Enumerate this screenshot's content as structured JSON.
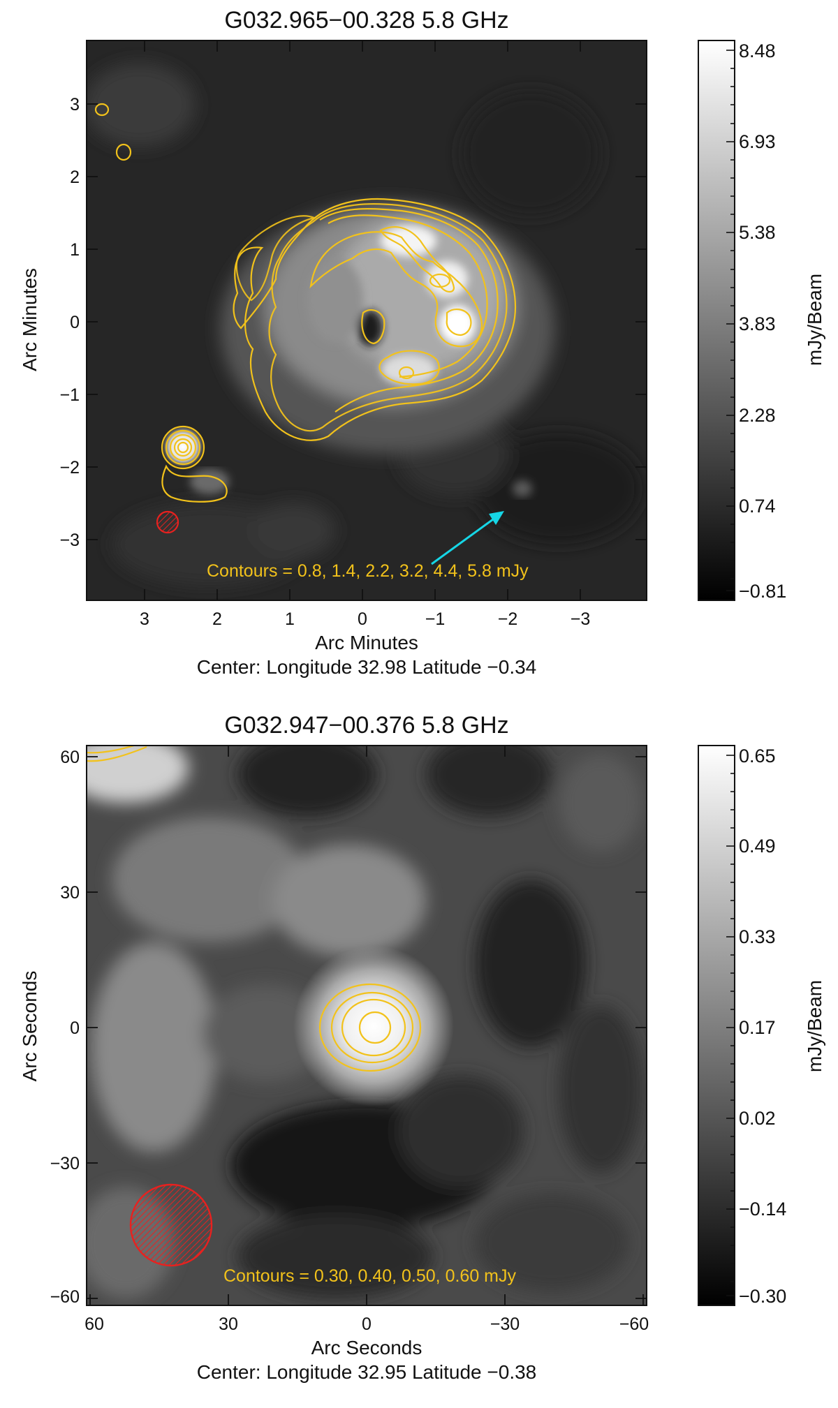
{
  "colors": {
    "contour": "#f2c21b",
    "beam": "#e8211f",
    "arrow": "#16d6e6",
    "frame": "#111111"
  },
  "panels": [
    {
      "title": "G032.965−00.328  5.8 GHz",
      "x_label": "Arc Minutes",
      "y_label": "Arc Minutes",
      "center_caption": "Center:  Longitude 32.98 Latitude −0.34",
      "contours_note": "Contours = 0.8, 1.4, 2.2, 3.2, 4.4, 5.8 mJy",
      "x_ticks": [
        "3",
        "2",
        "1",
        "0",
        "−1",
        "−2",
        "−3"
      ],
      "y_ticks": [
        "3",
        "2",
        "1",
        "0",
        "−1",
        "−2",
        "−3"
      ],
      "colorbar_label": "mJy/Beam",
      "colorbar_ticks": [
        "8.48",
        "6.93",
        "5.38",
        "3.83",
        "2.28",
        "0.74",
        "−0.81"
      ],
      "markers": [
        "beam-ellipse",
        "arrow-icon"
      ]
    },
    {
      "title": "G032.947−00.376  5.8 GHz",
      "x_label": "Arc Seconds",
      "y_label": "Arc Seconds",
      "center_caption": "Center:  Longitude 32.95 Latitude −0.38",
      "contours_note": "Contours = 0.30, 0.40, 0.50, 0.60 mJy",
      "x_ticks": [
        "60",
        "30",
        "0",
        "−30",
        "−60"
      ],
      "y_ticks": [
        "60",
        "30",
        "0",
        "−30",
        "−60"
      ],
      "colorbar_label": "mJy/Beam",
      "colorbar_ticks": [
        "0.65",
        "0.49",
        "0.33",
        "0.17",
        "0.02",
        "−0.14",
        "−0.30"
      ],
      "markers": [
        "beam-ellipse"
      ]
    }
  ]
}
